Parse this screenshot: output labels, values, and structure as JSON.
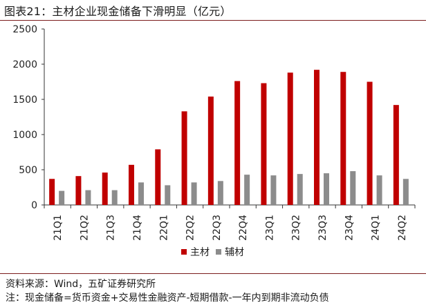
{
  "header": {
    "title": "图表21：主材企业现金储备下滑明显（亿元）"
  },
  "footer": {
    "source": "资料来源：Wind，五矿证券研究所",
    "note": "注：现金储备=货币资金+交易性金融资产-短期借款-一年内到期非流动负债"
  },
  "colors": {
    "main": "#c00000",
    "aux": "#8c8c8c",
    "rule": "#7a1a1a"
  },
  "chart_data": {
    "type": "bar",
    "categories": [
      "21Q1",
      "21Q2",
      "21Q3",
      "21Q4",
      "22Q1",
      "22Q2",
      "22Q3",
      "22Q4",
      "23Q1",
      "23Q2",
      "23Q3",
      "23Q4",
      "24Q1",
      "24Q2"
    ],
    "series": [
      {
        "name": "主材",
        "color": "#c00000",
        "values": [
          370,
          410,
          460,
          570,
          790,
          1330,
          1540,
          1760,
          1730,
          1880,
          1920,
          1890,
          1750,
          1420
        ]
      },
      {
        "name": "辅材",
        "color": "#8c8c8c",
        "values": [
          200,
          210,
          210,
          320,
          280,
          320,
          340,
          430,
          420,
          440,
          450,
          480,
          420,
          370
        ]
      }
    ],
    "yticks": [
      "0",
      "500",
      "1000",
      "1500",
      "2000",
      "2500"
    ],
    "ylim": [
      0,
      2500
    ],
    "legend_position": "bottom-center",
    "grid": false
  }
}
